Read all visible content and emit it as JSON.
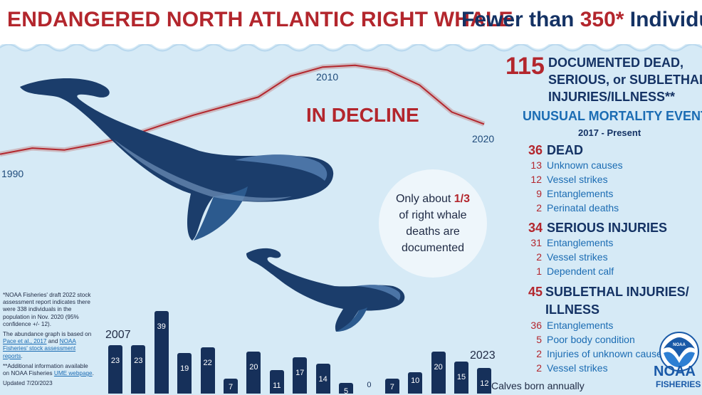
{
  "header": {
    "title_left": "ENDANGERED NORTH ATLANTIC RIGHT WHALE",
    "title_right_prefix": "Fewer than ",
    "title_right_number": "350*",
    "title_right_suffix": " Individuals"
  },
  "colors": {
    "accent_red": "#b3262d",
    "navy": "#143264",
    "sea": "#d6eaf6",
    "whale": "#1b3d6b",
    "bar": "#16305a"
  },
  "trend": {
    "label": "IN DECLINE",
    "year_start": "1990",
    "year_peak": "2010",
    "year_end": "2020"
  },
  "bubble": {
    "line1_prefix": "Only about ",
    "line1_fraction": "1/3",
    "line2": "of right whale",
    "line3": "deaths are",
    "line4": "documented"
  },
  "summary": {
    "total": "115",
    "total_line1": "DOCUMENTED DEAD,",
    "total_line2": "SERIOUS, or SUBLETHAL",
    "total_line3": "INJURIES/ILLNESS**",
    "ume_title": "UNUSUAL MORTALITY EVENT",
    "ume_period": "2017 - Present"
  },
  "categories": {
    "dead": {
      "count": "36",
      "label": "DEAD",
      "items": [
        {
          "n": "13",
          "label": "Unknown causes"
        },
        {
          "n": "12",
          "label": "Vessel strikes"
        },
        {
          "n": "9",
          "label": "Entanglements"
        },
        {
          "n": "2",
          "label": "Perinatal deaths"
        }
      ]
    },
    "serious": {
      "count": "34",
      "label": "SERIOUS INJURIES",
      "items": [
        {
          "n": "31",
          "label": "Entanglements"
        },
        {
          "n": "2",
          "label": "Vessel strikes"
        },
        {
          "n": "1",
          "label": "Dependent calf"
        }
      ]
    },
    "sublethal": {
      "count": "45",
      "label_line1": "SUBLETHAL INJURIES/",
      "label_line2": "ILLNESS",
      "items": [
        {
          "n": "36",
          "label": "Entanglements"
        },
        {
          "n": "5",
          "label": "Poor body condition"
        },
        {
          "n": "2",
          "label": "Injuries of unknown cause"
        },
        {
          "n": "2",
          "label": "Vessel strikes"
        }
      ]
    }
  },
  "footnotes": {
    "note1": "*NOAA Fisheries' draft 2022 stock assessment report indicates there were 338 individuals in the population in Nov. 2020 (95% confidence +/- 12).",
    "note2_prefix": "The abundance graph is based on ",
    "note2_link1": "Pace et al., 2017",
    "note2_mid": " and ",
    "note2_link2": "NOAA Fisheries' stock assessment reports",
    "note2_suffix": ".",
    "note3_prefix": "**Additional information available on NOAA Fisheries ",
    "note3_link": "UME webpage",
    "note3_suffix": ".",
    "updated": "Updated 7/20/2023"
  },
  "logo": {
    "word": "NOAA",
    "sub": "FISHERIES",
    "badge": "NOAA"
  },
  "chart_data": [
    {
      "type": "line",
      "title": "",
      "xlabel": "",
      "ylabel": "",
      "x": [
        1990,
        1992,
        1994,
        1996,
        1998,
        2000,
        2002,
        2004,
        2006,
        2008,
        2010,
        2012,
        2014,
        2016,
        2018,
        2020
      ],
      "series": [
        {
          "values": [
            270,
            280,
            277,
            287,
            300,
            318,
            335,
            350,
            365,
            400,
            415,
            418,
            410,
            385,
            340,
            320
          ]
        }
      ],
      "annotations": [
        "1990",
        "2010",
        "2020",
        "IN DECLINE"
      ]
    },
    {
      "type": "bar",
      "title": "Calves born annually",
      "categories": [
        "2007",
        "2008",
        "2009",
        "2010",
        "2011",
        "2012",
        "2013",
        "2014",
        "2015",
        "2016",
        "2017",
        "2018",
        "2019",
        "2020",
        "2021",
        "2022",
        "2023"
      ],
      "values": [
        23,
        23,
        39,
        19,
        22,
        7,
        20,
        11,
        17,
        14,
        5,
        0,
        7,
        10,
        20,
        15,
        12
      ],
      "start_label": "2007",
      "end_label": "2023",
      "ylim": [
        0,
        39
      ]
    }
  ]
}
